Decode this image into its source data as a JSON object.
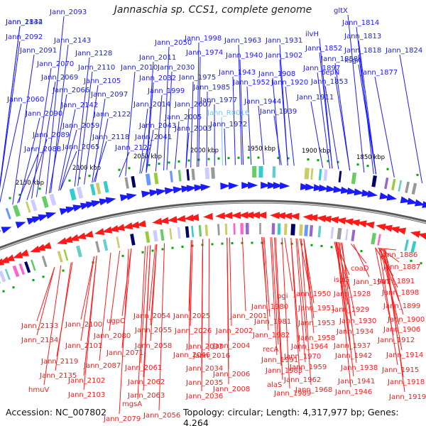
{
  "title": "Jannaschia sp. CCS1, complete genome",
  "footer": {
    "accession": "Accession: NC_007802",
    "summary": "Topology: circular; Length: 4,317,977 bp; Genes: 4,264"
  },
  "colors": {
    "forward": "#1a1aff",
    "reverse": "#ff1a1a",
    "rna": "#66ccff",
    "backbone": "#888888",
    "tick": "#00aa00"
  },
  "scale_labels": [
    "1850 kbp",
    "1900 kbp",
    "1950 kbp",
    "2000 kbp",
    "2050 kbp",
    "2100 kbp",
    "2150 kbp"
  ],
  "forward_genes": [
    "Jann_2144",
    "Jann_2093",
    "Jann_2092",
    "Jann_2143",
    "Jann_2091",
    "Jann_2128",
    "Jann_2070",
    "Jann_2110",
    "Jann_2069",
    "Jann_2105",
    "Jann_2066",
    "Jann_2097",
    "Jann_2060",
    "Jann_2142",
    "Jann_2090",
    "Jann_2122",
    "Jann_2059",
    "Jann_2089",
    "Jann_2118",
    "Jann_2065",
    "Jann_2088",
    "Jann_2127",
    "Jann_2050",
    "Jann_2011",
    "Jann_2010",
    "Jann_2032",
    "Jann_2014",
    "Jann_2043",
    "Jann_2041",
    "Jann_2030",
    "Jann_1999",
    "Jann_2007",
    "Jann_2005",
    "Jann_2003",
    "Jann_1998",
    "Jann_1974",
    "Jann_1975",
    "Jann_1985",
    "Jann_1977",
    "Jann_R0016",
    "Jann_1972",
    "Jann_1963",
    "Jann_1940",
    "Jann_1943",
    "Jann_1952",
    "Jann_1944",
    "Jann_1939",
    "Jann_1931",
    "Jann_1902",
    "Jann_1908",
    "Jann_1920",
    "Jann_1911",
    "Jann_1897",
    "ilvH",
    "Jann_1852",
    "Jann_1858",
    "pepN",
    "Jann_1853",
    "Jann_1877",
    "gltX",
    "Jann_1814",
    "Jann_1813",
    "Jann_1818",
    "Jann_1824",
    "ksgA",
    "Jann_1832"
  ],
  "reverse_genes": [
    "Jann_2133",
    "Jann_2134",
    "Jann_2119",
    "Jann_2135",
    "hmuV",
    "Jann_2100",
    "Jann_2101",
    "Jann_2087",
    "Jann_2102",
    "Jann_2103",
    "ugpC",
    "Jann_2080",
    "Jann_2071",
    "Jann_2079",
    "mgsA",
    "Jann_2054",
    "Jann_2055",
    "Jann_2058",
    "Jann_2061",
    "Jann_2062",
    "Jann_2063",
    "Jann_2056",
    "Jann_2046",
    "Jann_2025",
    "Jann_2026",
    "Jann_2033",
    "Jann_2034",
    "Jann_2035",
    "Jann_2036",
    "Jann_2016",
    "Jann_2001",
    "Jann_2002",
    "Jann_2004",
    "Jann_2006",
    "Jann_2008",
    "Jann_1980",
    "Jann_1981",
    "Jann_1982",
    "recA",
    "Jann_1991",
    "Jann_1983",
    "alaS",
    "Jann_1989",
    "pgi",
    "Jann_1950",
    "Jann_1951",
    "Jann_1953",
    "Jann_1958",
    "Jann_1964",
    "Jann_1970",
    "Jann_1959",
    "Jann_1962",
    "Jann_1968",
    "ispG",
    "Jann_1928",
    "Jann_1929",
    "Jann_1930",
    "Jann_1934",
    "Jann_1937",
    "Jann_1942",
    "Jann_1938",
    "Jann_1941",
    "Jann_1946",
    "coaD",
    "Jann_1917",
    "Jann_1886",
    "Jann_1887",
    "Jann_1891",
    "Jann_1898",
    "Jann_1899",
    "Jann_1900",
    "Jann_1906",
    "Jann_1912",
    "Jann_1914",
    "Jann_1915",
    "Jann_1918",
    "Jann_1919"
  ]
}
